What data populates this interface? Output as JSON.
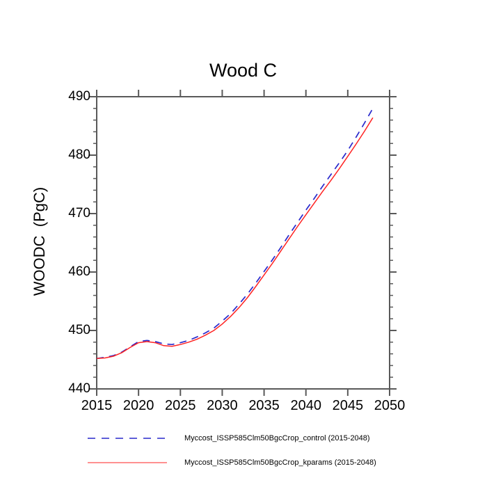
{
  "title": "Wood C",
  "y_axis_label": "WOODC  (PgC)",
  "colors": {
    "background": "#ffffff",
    "axis": "#595959",
    "text": "#000000",
    "control_line": "#2929cc",
    "kparams_line": "#ff2222"
  },
  "legend": {
    "items": [
      {
        "label": "Myccost_ISSP585Clm50BgcCrop_control (2015-2048)",
        "style": "dashed",
        "color": "#2929cc"
      },
      {
        "label": "Myccost_ISSP585Clm50BgcCrop_kparams (2015-2048)",
        "style": "solid",
        "color": "#ff2222"
      }
    ]
  },
  "chart_data": {
    "type": "line",
    "title": "Wood C",
    "xlabel": "",
    "ylabel": "WOODC  (PgC)",
    "xlim": [
      2015,
      2050
    ],
    "ylim": [
      440,
      490
    ],
    "x_major_ticks": [
      2015,
      2020,
      2025,
      2030,
      2035,
      2040,
      2045,
      2050
    ],
    "y_major_ticks": [
      440,
      450,
      460,
      470,
      480,
      490
    ],
    "y_minor_step": 2,
    "grid": false,
    "legend_position": "bottom",
    "x": [
      2015,
      2016,
      2017,
      2018,
      2019,
      2020,
      2021,
      2022,
      2023,
      2024,
      2025,
      2026,
      2027,
      2028,
      2029,
      2030,
      2031,
      2032,
      2033,
      2034,
      2035,
      2036,
      2037,
      2038,
      2039,
      2040,
      2041,
      2042,
      2043,
      2044,
      2045,
      2046,
      2047,
      2048
    ],
    "series": [
      {
        "name": "Myccost_ISSP585Clm50BgcCrop_control (2015-2048)",
        "style": "dashed",
        "values": [
          445.2,
          445.4,
          445.7,
          446.3,
          447.2,
          448.1,
          448.3,
          448.1,
          447.7,
          447.6,
          447.9,
          448.3,
          448.9,
          449.6,
          450.4,
          451.6,
          452.9,
          454.5,
          456.2,
          458.1,
          460.1,
          462.1,
          464.2,
          466.4,
          468.5,
          470.6,
          472.6,
          474.7,
          476.7,
          478.7,
          480.8,
          483.1,
          485.5,
          488.0
        ]
      },
      {
        "name": "Myccost_ISSP585Clm50BgcCrop_kparams (2015-2048)",
        "style": "solid",
        "values": [
          445.2,
          445.3,
          445.6,
          446.2,
          447.1,
          447.9,
          448.1,
          447.9,
          447.4,
          447.3,
          447.6,
          448.0,
          448.5,
          449.2,
          450.0,
          451.1,
          452.4,
          453.9,
          455.6,
          457.5,
          459.5,
          461.5,
          463.6,
          465.7,
          467.8,
          469.8,
          471.8,
          473.8,
          475.7,
          477.7,
          479.8,
          481.9,
          484.1,
          486.4
        ]
      }
    ]
  }
}
